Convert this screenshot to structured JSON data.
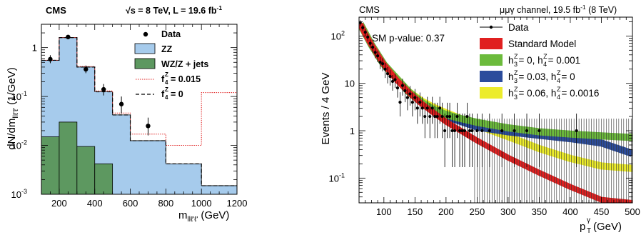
{
  "chart_data": [
    {
      "type": "bar",
      "stat_label": "CMS",
      "energy_label": "√s = 8 TeV, L = 19.6 fb",
      "energy_sup": "-1",
      "xlabel_main": "m",
      "xlabel_sub": "llℓ'ℓ'",
      "xlabel_unit": " (GeV)",
      "ylabel": "dN/dm",
      "ylabel_sub": "llℓ'ℓ'",
      "ylabel_unit": " (1/GeV)",
      "xlim": [
        100,
        1200
      ],
      "ylim": [
        0.001,
        3
      ],
      "yscale": "log",
      "xticks": [
        200,
        400,
        600,
        800,
        1000,
        1200
      ],
      "yticks": [
        {
          "v": 0.001,
          "base": "10",
          "exp": "-3"
        },
        {
          "v": 0.01,
          "base": "10",
          "exp": "-2"
        },
        {
          "v": 0.1,
          "base": "10",
          "exp": "-1"
        },
        {
          "v": 1,
          "base": "1",
          "exp": ""
        }
      ],
      "bin_edges": [
        100,
        200,
        300,
        400,
        500,
        600,
        800,
        1000,
        1200
      ],
      "legend_position": "top-right",
      "colors": {
        "zz": "#a6cbec",
        "wz": "#5d9860",
        "f4": "#e02020",
        "data": "#000000"
      },
      "legend": [
        {
          "key": "data",
          "label": "Data",
          "sup": "",
          "sub": "",
          "rest": ""
        },
        {
          "key": "zz",
          "label": "ZZ",
          "sup": "",
          "sub": "",
          "rest": ""
        },
        {
          "key": "wz",
          "label": "WZ/Z + jets",
          "sup": "",
          "sub": "",
          "rest": ""
        },
        {
          "key": "f4",
          "label": "f",
          "sup": "Z",
          "sub": "4",
          "rest": " = 0.015"
        },
        {
          "key": "sm",
          "label": "f",
          "sup": "Z",
          "sub": "4",
          "rest": " = 0"
        }
      ],
      "series": [
        {
          "name": "ZZ",
          "values": [
            0.55,
            1.6,
            0.4,
            0.125,
            0.042,
            0.0125,
            0.0042,
            0.0015
          ]
        },
        {
          "name": "WZ/Z + jets",
          "values": [
            0.015,
            0.03,
            0.0095,
            0.0042,
            0.0,
            0.0,
            0.0,
            0.0
          ]
        },
        {
          "name": "f4 = 0.015",
          "values": [
            0.55,
            1.6,
            0.41,
            0.13,
            0.046,
            0.017,
            0.01,
            0.12
          ]
        },
        {
          "name": "f4 = 0",
          "values": [
            0.55,
            1.6,
            0.4,
            0.125,
            0.042,
            0.0125,
            0.0042,
            0.0015
          ]
        }
      ],
      "data_points": [
        {
          "x": 150,
          "y": 0.58,
          "lo": 0.48,
          "hi": 0.7
        },
        {
          "x": 250,
          "y": 1.65,
          "lo": 1.5,
          "hi": 1.82
        },
        {
          "x": 350,
          "y": 0.36,
          "lo": 0.3,
          "hi": 0.43
        },
        {
          "x": 450,
          "y": 0.14,
          "lo": 0.105,
          "hi": 0.18
        },
        {
          "x": 550,
          "y": 0.07,
          "lo": 0.045,
          "hi": 0.1
        },
        {
          "x": 700,
          "y": 0.025,
          "lo": 0.016,
          "hi": 0.037
        }
      ]
    },
    {
      "type": "line",
      "stat_label": "CMS",
      "channel_label": "μμγ channel, 19.5 fb",
      "channel_sup": "-1",
      "channel_rest": " (8 TeV)",
      "annotation": "SM p-value: 0.37",
      "xlabel_main": "p",
      "xlabel_sup": "γ",
      "xlabel_sub": "T",
      "xlabel_unit": " (GeV)",
      "ylabel": "Events / 4 GeV",
      "xlim": [
        60,
        500
      ],
      "ylim": [
        0.03,
        250
      ],
      "yscale": "log",
      "xticks": [
        100,
        150,
        200,
        250,
        300,
        350,
        400,
        450,
        500
      ],
      "yticks": [
        {
          "v": 0.1,
          "base": "10",
          "exp": "-1"
        },
        {
          "v": 1,
          "base": "1",
          "exp": ""
        },
        {
          "v": 10,
          "base": "10",
          "exp": ""
        },
        {
          "v": 100,
          "base": "10",
          "exp": "2"
        }
      ],
      "legend_position": "top-right",
      "colors": {
        "sm": "#e02020",
        "g": "#6cbb3c",
        "bl": "#2b4c9c",
        "y": "#ecec2c",
        "data": "#000000"
      },
      "legend": [
        {
          "key": "data",
          "parts": [
            {
              "t": "Data"
            }
          ]
        },
        {
          "key": "sm",
          "parts": [
            {
              "t": "Standard Model"
            }
          ]
        },
        {
          "key": "g",
          "parts": [
            {
              "t": "h"
            },
            {
              "sup": "Z",
              "sub": "3"
            },
            {
              "t": " = 0, h"
            },
            {
              "sup": "Z",
              "sub": "4"
            },
            {
              "t": " = 0.001"
            }
          ]
        },
        {
          "key": "bl",
          "parts": [
            {
              "t": "h"
            },
            {
              "sup": "Z",
              "sub": "3"
            },
            {
              "t": " = 0.03, h"
            },
            {
              "sup": "Z",
              "sub": "4"
            },
            {
              "t": " = 0"
            }
          ]
        },
        {
          "key": "y",
          "parts": [
            {
              "t": "h"
            },
            {
              "sup": "Z",
              "sub": "3"
            },
            {
              "t": " = 0.06, h"
            },
            {
              "sup": "Z",
              "sub": "4"
            },
            {
              "t": " = 0.0016"
            }
          ]
        }
      ],
      "series": [
        {
          "name": "Standard Model",
          "x": [
            62,
            70,
            80,
            90,
            100,
            120,
            140,
            160,
            180,
            200,
            250,
            300,
            350,
            400,
            450,
            500
          ],
          "y": [
            180,
            110,
            65,
            40,
            25,
            12,
            6.5,
            3.8,
            2.4,
            1.55,
            0.62,
            0.27,
            0.13,
            0.065,
            0.035,
            0.02
          ]
        },
        {
          "name": "h3 = 0, h4 = 0.001",
          "x": [
            62,
            80,
            100,
            140,
            160,
            180,
            200,
            220,
            250,
            300,
            350,
            400,
            450,
            500
          ],
          "y": [
            180,
            65,
            25,
            6.6,
            4.0,
            2.8,
            2.2,
            1.85,
            1.5,
            1.15,
            0.95,
            0.85,
            0.78,
            0.72
          ]
        },
        {
          "name": "h3 = 0.03, h4 = 0",
          "x": [
            62,
            80,
            100,
            140,
            160,
            180,
            200,
            250,
            300,
            350,
            400,
            450,
            500
          ],
          "y": [
            180,
            65,
            25,
            6.6,
            4.0,
            2.7,
            2.0,
            1.2,
            0.95,
            0.8,
            0.68,
            0.55,
            0.33
          ]
        },
        {
          "name": "h3 = 0.06, h4 = 0.0016",
          "x": [
            62,
            80,
            100,
            140,
            160,
            180,
            200,
            250,
            300,
            350,
            400,
            450,
            500
          ],
          "y": [
            180,
            65,
            25,
            6.7,
            4.3,
            3.1,
            2.4,
            1.3,
            0.75,
            0.42,
            0.26,
            0.18,
            0.16
          ]
        }
      ],
      "data_points": [
        {
          "x": 62,
          "y": 190,
          "lo": 165,
          "hi": 215
        },
        {
          "x": 66,
          "y": 150,
          "lo": 128,
          "hi": 172
        },
        {
          "x": 70,
          "y": 120,
          "lo": 100,
          "hi": 140
        },
        {
          "x": 74,
          "y": 95,
          "lo": 78,
          "hi": 112
        },
        {
          "x": 78,
          "y": 70,
          "lo": 56,
          "hi": 84
        },
        {
          "x": 82,
          "y": 58,
          "lo": 45,
          "hi": 71
        },
        {
          "x": 86,
          "y": 45,
          "lo": 34,
          "hi": 56
        },
        {
          "x": 90,
          "y": 38,
          "lo": 28,
          "hi": 48
        },
        {
          "x": 94,
          "y": 28,
          "lo": 20,
          "hi": 36
        },
        {
          "x": 98,
          "y": 26,
          "lo": 18,
          "hi": 34
        },
        {
          "x": 102,
          "y": 20,
          "lo": 13,
          "hi": 27
        },
        {
          "x": 106,
          "y": 16,
          "lo": 10,
          "hi": 22
        },
        {
          "x": 110,
          "y": 14,
          "lo": 9,
          "hi": 19
        },
        {
          "x": 114,
          "y": 11,
          "lo": 7,
          "hi": 15
        },
        {
          "x": 118,
          "y": 12,
          "lo": 8,
          "hi": 16
        },
        {
          "x": 122,
          "y": 8,
          "lo": 5,
          "hi": 11
        },
        {
          "x": 126,
          "y": 4.0,
          "lo": 2.0,
          "hi": 6.5
        },
        {
          "x": 130,
          "y": 9,
          "lo": 5.5,
          "hi": 12.5
        },
        {
          "x": 134,
          "y": 7,
          "lo": 4,
          "hi": 10
        },
        {
          "x": 138,
          "y": 5,
          "lo": 2.7,
          "hi": 7.6
        },
        {
          "x": 142,
          "y": 6,
          "lo": 3.4,
          "hi": 8.8
        },
        {
          "x": 146,
          "y": 4,
          "lo": 2.0,
          "hi": 6.4
        },
        {
          "x": 150,
          "y": 5,
          "lo": 2.7,
          "hi": 7.6
        },
        {
          "x": 154,
          "y": 3,
          "lo": 1.4,
          "hi": 5.2
        },
        {
          "x": 158,
          "y": 4,
          "lo": 2.0,
          "hi": 6.4
        },
        {
          "x": 162,
          "y": 3,
          "lo": 1.4,
          "hi": 5.2
        },
        {
          "x": 166,
          "y": 2,
          "lo": 0.7,
          "hi": 3.9
        },
        {
          "x": 170,
          "y": 3,
          "lo": 1.4,
          "hi": 5.2
        },
        {
          "x": 174,
          "y": 2,
          "lo": 0.7,
          "hi": 3.9
        },
        {
          "x": 178,
          "y": 3,
          "lo": 1.4,
          "hi": 5.2
        },
        {
          "x": 182,
          "y": 2,
          "lo": 0.7,
          "hi": 3.9
        },
        {
          "x": 186,
          "y": 2,
          "lo": 0.7,
          "hi": 3.9
        },
        {
          "x": 190,
          "y": 3,
          "lo": 1.4,
          "hi": 5.2
        },
        {
          "x": 194,
          "y": 2,
          "lo": 0.7,
          "hi": 3.9
        },
        {
          "x": 198,
          "y": 1,
          "lo": 0.17,
          "hi": 2.3
        },
        {
          "x": 202,
          "y": 2,
          "lo": 0.7,
          "hi": 3.9
        },
        {
          "x": 206,
          "y": 2,
          "lo": 0.7,
          "hi": 3.9
        },
        {
          "x": 210,
          "y": 1,
          "lo": 0.17,
          "hi": 2.3
        },
        {
          "x": 214,
          "y": 1,
          "lo": 0.17,
          "hi": 2.3
        },
        {
          "x": 218,
          "y": 2,
          "lo": 0.7,
          "hi": 3.9
        },
        {
          "x": 222,
          "y": 1,
          "lo": 0.17,
          "hi": 2.3
        },
        {
          "x": 226,
          "y": 1,
          "lo": 0.17,
          "hi": 2.3
        },
        {
          "x": 230,
          "y": 1,
          "lo": 0.17,
          "hi": 2.3
        },
        {
          "x": 234,
          "y": 2,
          "lo": 0.7,
          "hi": 3.9
        },
        {
          "x": 238,
          "y": 1,
          "lo": 0.17,
          "hi": 2.3
        },
        {
          "x": 242,
          "y": 1,
          "lo": 0.17,
          "hi": 2.3
        },
        {
          "x": 250,
          "y": 1,
          "lo": 0.17,
          "hi": 2.3
        },
        {
          "x": 258,
          "y": 1,
          "lo": 0.17,
          "hi": 2.3
        },
        {
          "x": 270,
          "y": 1,
          "lo": 0.17,
          "hi": 2.3
        },
        {
          "x": 290,
          "y": 1,
          "lo": 0.17,
          "hi": 2.3
        },
        {
          "x": 310,
          "y": 1,
          "lo": 0.17,
          "hi": 2.3
        },
        {
          "x": 330,
          "y": 1,
          "lo": 0.17,
          "hi": 2.3
        },
        {
          "x": 350,
          "y": 1,
          "lo": 0.17,
          "hi": 2.3
        },
        {
          "x": 410,
          "y": 1,
          "lo": 0.17,
          "hi": 2.3
        }
      ],
      "empty_bin_errors": {
        "x_start": 246,
        "x_end": 498,
        "step": 4,
        "hi": 1.8
      }
    }
  ]
}
